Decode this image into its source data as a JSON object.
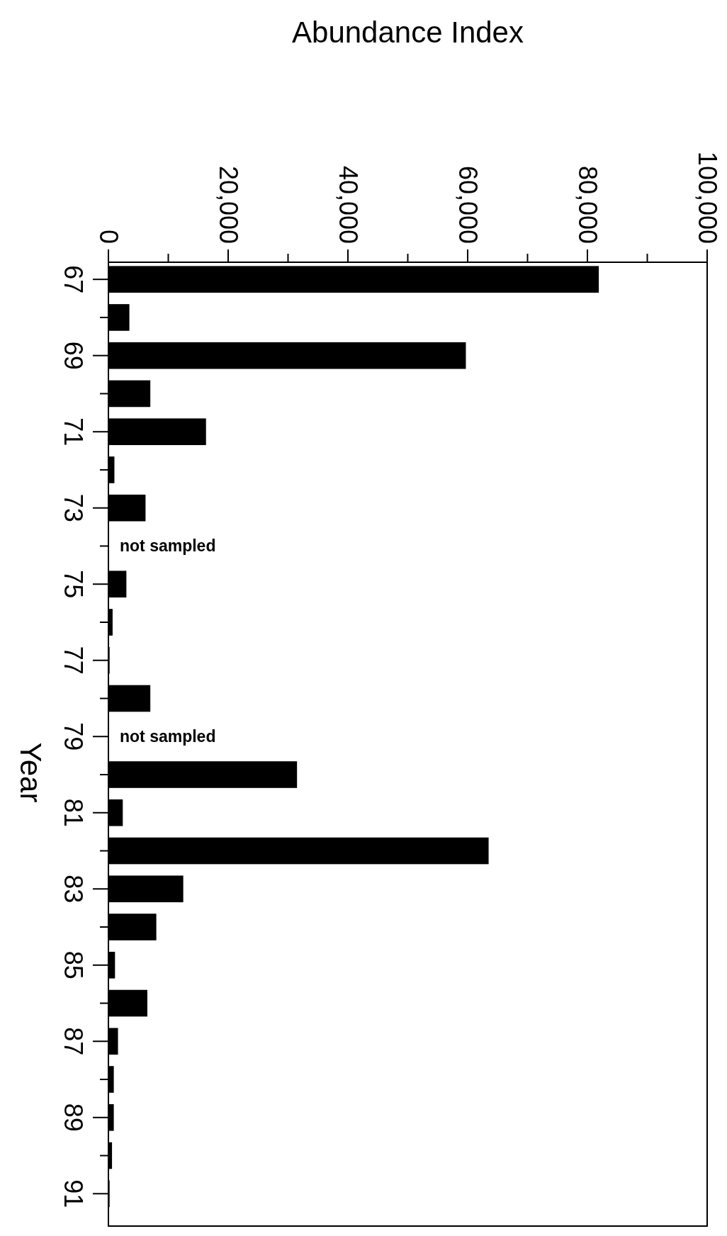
{
  "chart_data": {
    "type": "bar",
    "orientation": "horizontal",
    "xlabel": "Abundance Index",
    "ylabel": "Year",
    "categories": [
      "67",
      null,
      "69",
      null,
      "71",
      null,
      "73",
      null,
      "75",
      null,
      "77",
      null,
      "79",
      null,
      "81",
      null,
      "83",
      null,
      "85",
      null,
      "87",
      null,
      "89",
      null,
      "91"
    ],
    "values": [
      81900,
      3500,
      59700,
      7000,
      16300,
      1000,
      6200,
      null,
      3000,
      700,
      200,
      7000,
      null,
      31500,
      2400,
      63500,
      12500,
      8000,
      1100,
      6500,
      1600,
      900,
      900,
      600,
      200
    ],
    "color": "#000000",
    "xlim": [
      0,
      100000
    ],
    "xticks": [
      0,
      {
        "value": 10000,
        "label": null
      },
      {
        "value": 20000,
        "label": "20,000"
      },
      {
        "value": 30000,
        "label": null
      },
      {
        "value": 40000,
        "label": "40,000"
      },
      {
        "value": 50000,
        "label": null
      },
      {
        "value": 60000,
        "label": "60,000"
      },
      {
        "value": 70000,
        "label": null
      },
      {
        "value": 80000,
        "label": "80,000"
      },
      {
        "value": 90000,
        "label": null
      },
      {
        "value": 100000,
        "label": "100,000"
      }
    ],
    "annotations": [
      "not sampled",
      "not sampled"
    ],
    "grid": false
  }
}
